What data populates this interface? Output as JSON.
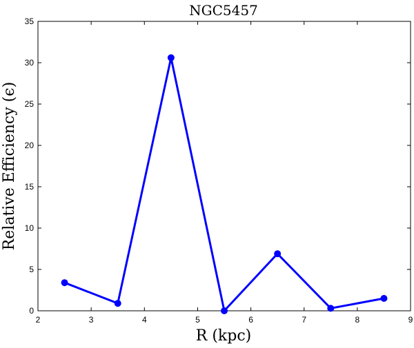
{
  "chart_data": {
    "type": "line",
    "title": "NGC5457",
    "xlabel": "R (kpc)",
    "ylabel": "Relative Efficiency (ϵ)",
    "xlim": [
      2,
      9
    ],
    "ylim": [
      0,
      35
    ],
    "xticks": [
      2,
      3,
      4,
      5,
      6,
      7,
      8,
      9
    ],
    "yticks": [
      0,
      5,
      10,
      15,
      20,
      25,
      30,
      35
    ],
    "grid": false,
    "series": [
      {
        "color": "#0000ff",
        "marker": "circle",
        "x": [
          2.5,
          3.5,
          4.5,
          5.5,
          6.5,
          7.5,
          8.5
        ],
        "y": [
          3.4,
          0.9,
          30.6,
          0.0,
          6.9,
          0.3,
          1.5
        ]
      }
    ]
  }
}
